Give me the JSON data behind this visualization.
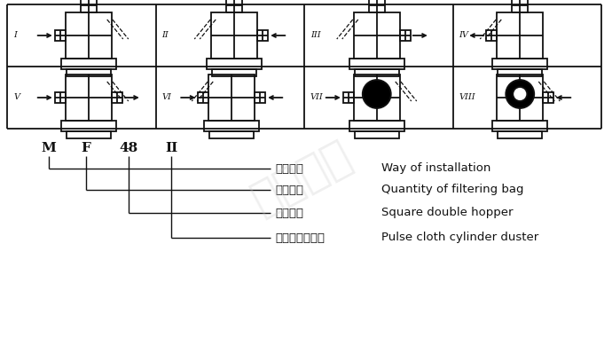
{
  "bg_color": "#ffffff",
  "line_color": "#111111",
  "labels_cn": [
    "安装形式",
    "滤袋数量",
    "方型双斗",
    "脉冲布筒滤尘器"
  ],
  "labels_en": [
    "Way of installation",
    "Quantity of filtering bag",
    "Square double hopper",
    "Pulse cloth cylinder duster"
  ],
  "codes": [
    "M",
    "F",
    "48",
    "II"
  ],
  "roman": [
    "I",
    "II",
    "III",
    "IV",
    "V",
    "VI",
    "VII",
    "VIII"
  ],
  "grid_lw": 1.3,
  "diagram_lw": 1.3,
  "arrow_ms": 7
}
